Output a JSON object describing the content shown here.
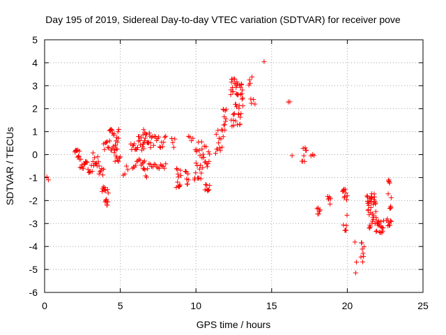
{
  "chart_data": {
    "type": "scatter",
    "title": "Day 195 of 2019, Sidereal Day-to-day VTEC variation (SDTVAR) for receiver pove",
    "xlabel": "GPS time / hours",
    "ylabel": "SDTVAR / TECUs",
    "xlim": [
      0,
      25
    ],
    "ylim": [
      -6,
      5
    ],
    "x_ticks": [
      0,
      5,
      10,
      15,
      20,
      25
    ],
    "y_ticks": [
      -6,
      -5,
      -4,
      -3,
      -2,
      -1,
      0,
      1,
      2,
      3,
      4,
      5
    ],
    "grid": true,
    "marker": "+",
    "series_color": "#ff0000",
    "clusters": [
      {
        "x0": 0.15,
        "x1": 0.25,
        "y0": -1.1,
        "y1": -0.9,
        "n": 2
      },
      {
        "x0": 2.0,
        "x1": 2.3,
        "y0": -0.2,
        "y1": 0.2,
        "n": 10
      },
      {
        "x0": 2.3,
        "x1": 2.7,
        "y0": -0.6,
        "y1": -0.2,
        "n": 10
      },
      {
        "x0": 2.7,
        "x1": 3.2,
        "y0": -0.8,
        "y1": -0.3,
        "n": 10
      },
      {
        "x0": 3.2,
        "x1": 3.6,
        "y0": -0.5,
        "y1": 0.1,
        "n": 10
      },
      {
        "x0": 3.6,
        "x1": 3.9,
        "y0": -0.9,
        "y1": -0.6,
        "n": 6
      },
      {
        "x0": 3.8,
        "x1": 4.0,
        "y0": -1.6,
        "y1": -1.2,
        "n": 6
      },
      {
        "x0": 4.0,
        "x1": 4.2,
        "y0": -2.2,
        "y1": -1.5,
        "n": 10
      },
      {
        "x0": 3.9,
        "x1": 4.3,
        "y0": 0.2,
        "y1": 0.6,
        "n": 8
      },
      {
        "x0": 4.3,
        "x1": 4.9,
        "y0": 0.2,
        "y1": 1.1,
        "n": 24
      },
      {
        "x0": 4.6,
        "x1": 5.0,
        "y0": -0.3,
        "y1": 0.1,
        "n": 8
      },
      {
        "x0": 5.2,
        "x1": 5.5,
        "y0": -0.9,
        "y1": -0.5,
        "n": 4
      },
      {
        "x0": 5.7,
        "x1": 6.2,
        "y0": 0.2,
        "y1": 0.6,
        "n": 10
      },
      {
        "x0": 5.8,
        "x1": 6.6,
        "y0": -0.6,
        "y1": -0.2,
        "n": 12
      },
      {
        "x0": 6.2,
        "x1": 6.6,
        "y0": 0.2,
        "y1": 0.8,
        "n": 10
      },
      {
        "x0": 6.5,
        "x1": 7.0,
        "y0": 0.5,
        "y1": 1.1,
        "n": 14
      },
      {
        "x0": 6.5,
        "x1": 6.8,
        "y0": -1.0,
        "y1": -0.6,
        "n": 6
      },
      {
        "x0": 6.9,
        "x1": 8.0,
        "y0": -0.6,
        "y1": -0.4,
        "n": 14
      },
      {
        "x0": 7.0,
        "x1": 8.0,
        "y0": 0.3,
        "y1": 0.8,
        "n": 16
      },
      {
        "x0": 8.4,
        "x1": 8.6,
        "y0": 0.3,
        "y1": 0.7,
        "n": 4
      },
      {
        "x0": 8.7,
        "x1": 9.0,
        "y0": -1.5,
        "y1": -0.6,
        "n": 12
      },
      {
        "x0": 9.3,
        "x1": 9.5,
        "y0": -1.3,
        "y1": -0.7,
        "n": 8
      },
      {
        "x0": 9.5,
        "x1": 9.8,
        "y0": 0.6,
        "y1": 0.8,
        "n": 4
      },
      {
        "x0": 9.9,
        "x1": 10.4,
        "y0": -1.1,
        "y1": 0.6,
        "n": 20
      },
      {
        "x0": 10.4,
        "x1": 10.9,
        "y0": -0.6,
        "y1": 0.4,
        "n": 14
      },
      {
        "x0": 10.6,
        "x1": 10.9,
        "y0": -1.6,
        "y1": -1.3,
        "n": 8
      },
      {
        "x0": 11.3,
        "x1": 11.8,
        "y0": 0.0,
        "y1": 1.1,
        "n": 14
      },
      {
        "x0": 11.8,
        "x1": 12.0,
        "y0": 1.0,
        "y1": 2.0,
        "n": 10
      },
      {
        "x0": 12.3,
        "x1": 12.7,
        "y0": 1.2,
        "y1": 3.3,
        "n": 26
      },
      {
        "x0": 12.7,
        "x1": 13.1,
        "y0": 1.3,
        "y1": 3.1,
        "n": 24
      },
      {
        "x0": 13.5,
        "x1": 13.7,
        "y0": 2.2,
        "y1": 3.4,
        "n": 6
      },
      {
        "x0": 13.8,
        "x1": 13.9,
        "y0": 2.2,
        "y1": 2.4,
        "n": 2
      },
      {
        "x0": 14.45,
        "x1": 14.55,
        "y0": 4.05,
        "y1": 4.05,
        "n": 1
      },
      {
        "x0": 16.1,
        "x1": 16.2,
        "y0": 2.2,
        "y1": 2.3,
        "n": 2
      },
      {
        "x0": 16.3,
        "x1": 16.4,
        "y0": -0.05,
        "y1": 0.0,
        "n": 1
      },
      {
        "x0": 17.0,
        "x1": 17.3,
        "y0": -0.3,
        "y1": 0.3,
        "n": 8
      },
      {
        "x0": 17.6,
        "x1": 17.8,
        "y0": -0.1,
        "y1": 0.0,
        "n": 3
      },
      {
        "x0": 18.0,
        "x1": 18.2,
        "y0": -2.6,
        "y1": -2.3,
        "n": 6
      },
      {
        "x0": 18.7,
        "x1": 18.9,
        "y0": -2.2,
        "y1": -1.8,
        "n": 6
      },
      {
        "x0": 19.7,
        "x1": 20.0,
        "y0": -3.3,
        "y1": -1.5,
        "n": 16
      },
      {
        "x0": 20.5,
        "x1": 20.6,
        "y0": -5.15,
        "y1": -3.8,
        "n": 3
      },
      {
        "x0": 20.9,
        "x1": 21.1,
        "y0": -4.7,
        "y1": -3.8,
        "n": 8
      },
      {
        "x0": 21.3,
        "x1": 21.6,
        "y0": -3.2,
        "y1": -1.8,
        "n": 22
      },
      {
        "x0": 21.6,
        "x1": 21.9,
        "y0": -3.0,
        "y1": -1.7,
        "n": 18
      },
      {
        "x0": 21.9,
        "x1": 22.4,
        "y0": -3.4,
        "y1": -2.8,
        "n": 18
      },
      {
        "x0": 22.6,
        "x1": 22.9,
        "y0": -3.1,
        "y1": -2.8,
        "n": 8
      },
      {
        "x0": 22.7,
        "x1": 22.9,
        "y0": -2.4,
        "y1": -1.1,
        "n": 10
      }
    ]
  }
}
